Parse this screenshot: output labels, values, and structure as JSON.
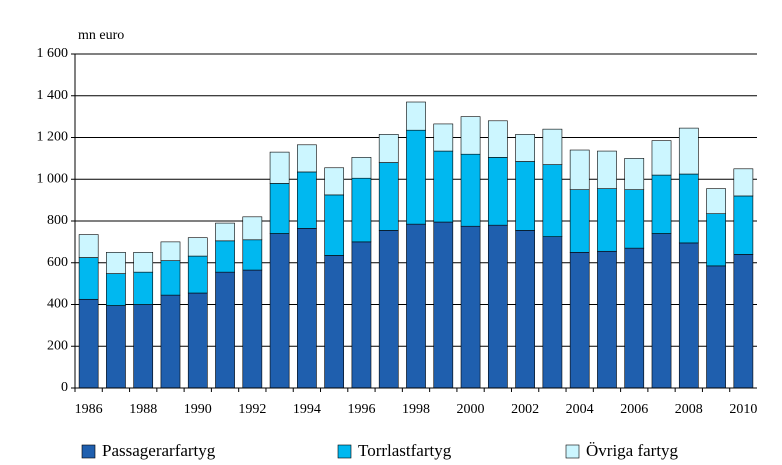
{
  "chart_data": {
    "type": "stacked_bar",
    "y_axis_label": "mn euro",
    "categories": [
      "1986",
      null,
      "1988",
      null,
      "1990",
      null,
      "1992",
      null,
      "1994",
      null,
      "1996",
      null,
      "1998",
      null,
      "2000",
      null,
      "2002",
      null,
      "2004",
      null,
      "2006",
      null,
      "2008",
      null,
      "2010"
    ],
    "series": [
      {
        "name": "Passagerarfartyg",
        "color": "#1f5fae",
        "values": [
          425,
          395,
          400,
          445,
          455,
          555,
          565,
          740,
          765,
          635,
          700,
          755,
          785,
          795,
          775,
          780,
          755,
          725,
          650,
          655,
          670,
          740,
          695,
          585,
          640
        ]
      },
      {
        "name": "Torrlastfartyg",
        "color": "#00b8f0",
        "values": [
          200,
          153,
          155,
          165,
          177,
          150,
          145,
          240,
          270,
          290,
          305,
          325,
          450,
          340,
          345,
          325,
          330,
          345,
          300,
          300,
          280,
          280,
          330,
          250,
          280
        ]
      },
      {
        "name": "Övriga fartyg",
        "color": "#ccf6ff",
        "values": [
          110,
          102,
          95,
          90,
          88,
          85,
          110,
          150,
          130,
          130,
          100,
          135,
          135,
          130,
          180,
          175,
          130,
          170,
          190,
          180,
          150,
          165,
          220,
          120,
          130
        ]
      }
    ],
    "ylim": [
      0,
      1600
    ],
    "yticks": [
      0,
      200,
      400,
      600,
      800,
      {
        "value": 1000,
        "label": "1 000"
      },
      {
        "value": 1200,
        "label": "1 200"
      },
      {
        "value": 1400,
        "label": "1 400"
      },
      {
        "value": 1600,
        "label": "1 600"
      }
    ],
    "grid": true
  }
}
